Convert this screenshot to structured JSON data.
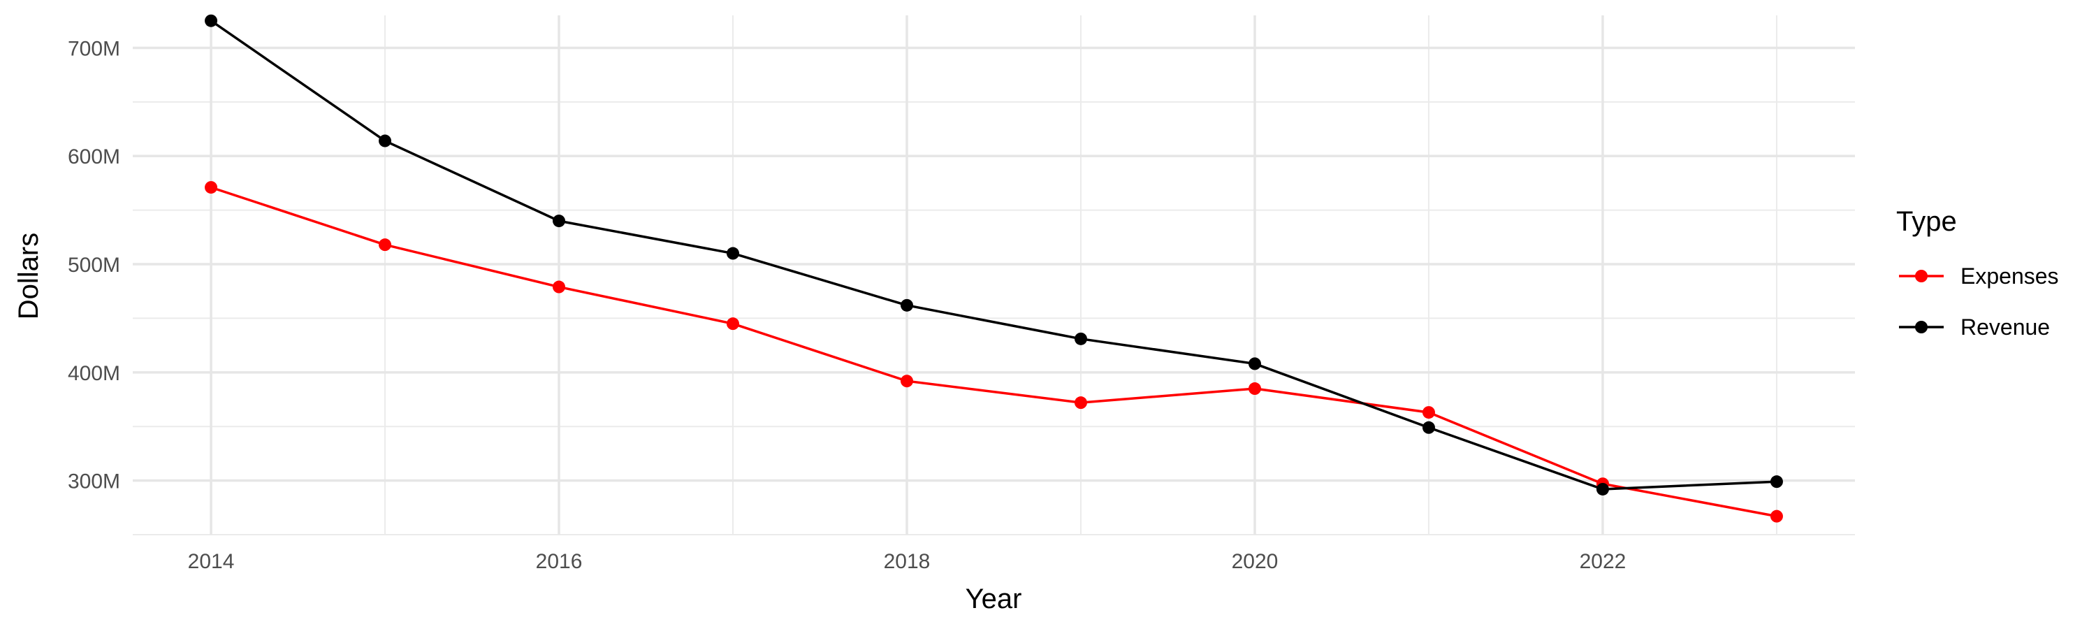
{
  "chart_data": {
    "type": "line",
    "xlabel": "Year",
    "ylabel": "Dollars",
    "x": [
      2014,
      2015,
      2016,
      2017,
      2018,
      2019,
      2020,
      2021,
      2022,
      2023
    ],
    "x_ticks": [
      "2014",
      "2016",
      "2018",
      "2020",
      "2022"
    ],
    "y_ticks": [
      "300M",
      "400M",
      "500M",
      "600M",
      "700M"
    ],
    "xlim": [
      2013.55,
      2023.45
    ],
    "ylim": [
      250,
      730
    ],
    "grid": true,
    "legend": {
      "title": "Type",
      "position": "right"
    },
    "series": [
      {
        "name": "Expenses",
        "color": "#ff0000",
        "values": [
          571,
          518,
          479,
          445,
          392,
          372,
          385,
          363,
          297,
          267
        ]
      },
      {
        "name": "Revenue",
        "color": "#000000",
        "values": [
          725,
          614,
          540,
          510,
          462,
          431,
          408,
          349,
          292,
          299
        ]
      }
    ]
  }
}
